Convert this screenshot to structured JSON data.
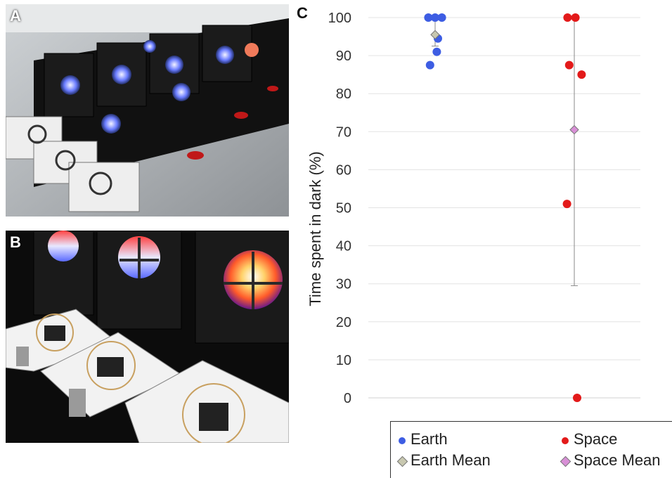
{
  "panels": {
    "a": "A",
    "b": "B",
    "c": "C"
  },
  "colors": {
    "earth": "#3d5de3",
    "space": "#e31a1a",
    "earth_mean": "#c8c8b0",
    "space_mean": "#d88fd6",
    "gridline": "#e3e3e3",
    "error_bar": "#888888"
  },
  "chart_data": {
    "type": "scatter",
    "title": "",
    "xlabel": "",
    "ylabel": "Time spent in dark (%)",
    "ylim": [
      0,
      100
    ],
    "yticks": [
      0,
      10,
      20,
      30,
      40,
      50,
      60,
      70,
      80,
      90,
      100
    ],
    "grid": true,
    "legend_position": "bottom",
    "series": [
      {
        "name": "Earth",
        "key": "earth",
        "marker": "circle",
        "group": "Earth",
        "values": [
          100,
          100,
          100,
          94.5,
          91,
          87.5
        ],
        "offsets": [
          -0.6,
          0,
          0.6,
          0.25,
          0.15,
          -0.45
        ]
      },
      {
        "name": "Space",
        "key": "space",
        "marker": "circle",
        "group": "Space",
        "values": [
          100,
          100,
          87.5,
          85,
          51,
          0
        ],
        "offsets": [
          -0.6,
          0.1,
          -0.45,
          0.65,
          -0.65,
          0.25
        ]
      },
      {
        "name": "Earth Mean",
        "key": "earth_mean",
        "marker": "diamond",
        "group": "Earth",
        "values": [
          95.5
        ],
        "error": [
          92.5,
          99.5
        ]
      },
      {
        "name": "Space Mean",
        "key": "space_mean",
        "marker": "diamond",
        "group": "Space",
        "values": [
          70.5
        ],
        "error": [
          29.5,
          100
        ]
      }
    ]
  },
  "legend": {
    "earth": "Earth",
    "space": "Space",
    "earth_mean": "Earth Mean",
    "space_mean": "Space Mean"
  }
}
